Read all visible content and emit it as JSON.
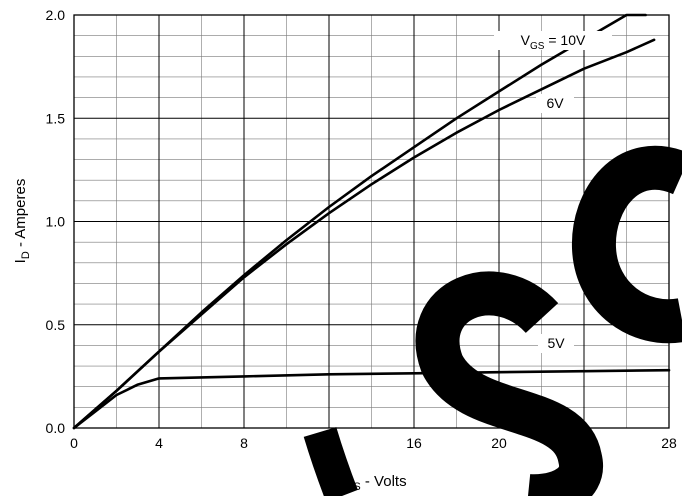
{
  "chart_data": {
    "type": "line",
    "xlabel_main": "V",
    "xlabel_sub": "DS",
    "xlabel_rest": " - Volts",
    "ylabel_main": "I",
    "ylabel_sub": "D",
    "ylabel_rest": " - Amperes",
    "xlim": [
      0,
      28
    ],
    "ylim": [
      0,
      2.0
    ],
    "x_ticks": [
      0,
      4,
      8,
      12,
      16,
      20,
      24,
      28
    ],
    "y_ticks": [
      0,
      0.5,
      1.0,
      1.5,
      2.0
    ],
    "x_tick_labels": [
      "0",
      "4",
      "8",
      "12",
      "16",
      "20",
      "24",
      "28"
    ],
    "y_tick_labels": [
      "0.0",
      "0.5",
      "1.0",
      "1.5",
      "2.0"
    ],
    "minor_x_step": 2,
    "minor_y_step": 0.1,
    "grid": true,
    "line_color": "#000000",
    "watermark_color": "#000000",
    "series": [
      {
        "name": "VGS = 10V",
        "label_main": "V",
        "label_sub": "GS",
        "label_rest": " = 10V",
        "x": [
          0,
          1,
          2,
          4,
          6,
          8,
          10,
          12,
          14,
          16,
          18,
          20,
          22,
          24,
          26,
          26.9
        ],
        "y": [
          0,
          0.09,
          0.18,
          0.37,
          0.56,
          0.74,
          0.91,
          1.07,
          1.22,
          1.36,
          1.5,
          1.63,
          1.76,
          1.88,
          2.0,
          2.05
        ]
      },
      {
        "name": "6V",
        "label_main": "6V",
        "label_sub": "",
        "label_rest": "",
        "x": [
          0,
          1,
          2,
          4,
          6,
          8,
          10,
          12,
          14,
          16,
          18,
          20,
          22,
          24,
          26,
          27.3
        ],
        "y": [
          0,
          0.09,
          0.18,
          0.37,
          0.55,
          0.73,
          0.89,
          1.04,
          1.18,
          1.31,
          1.43,
          1.54,
          1.64,
          1.74,
          1.82,
          1.88
        ]
      },
      {
        "name": "5V",
        "label_main": "5V",
        "label_sub": "",
        "label_rest": "",
        "x": [
          0,
          1,
          2,
          3,
          4,
          8,
          12,
          16,
          20,
          24,
          28
        ],
        "y": [
          0,
          0.08,
          0.16,
          0.21,
          0.24,
          0.25,
          0.26,
          0.265,
          0.27,
          0.275,
          0.28
        ]
      }
    ]
  }
}
